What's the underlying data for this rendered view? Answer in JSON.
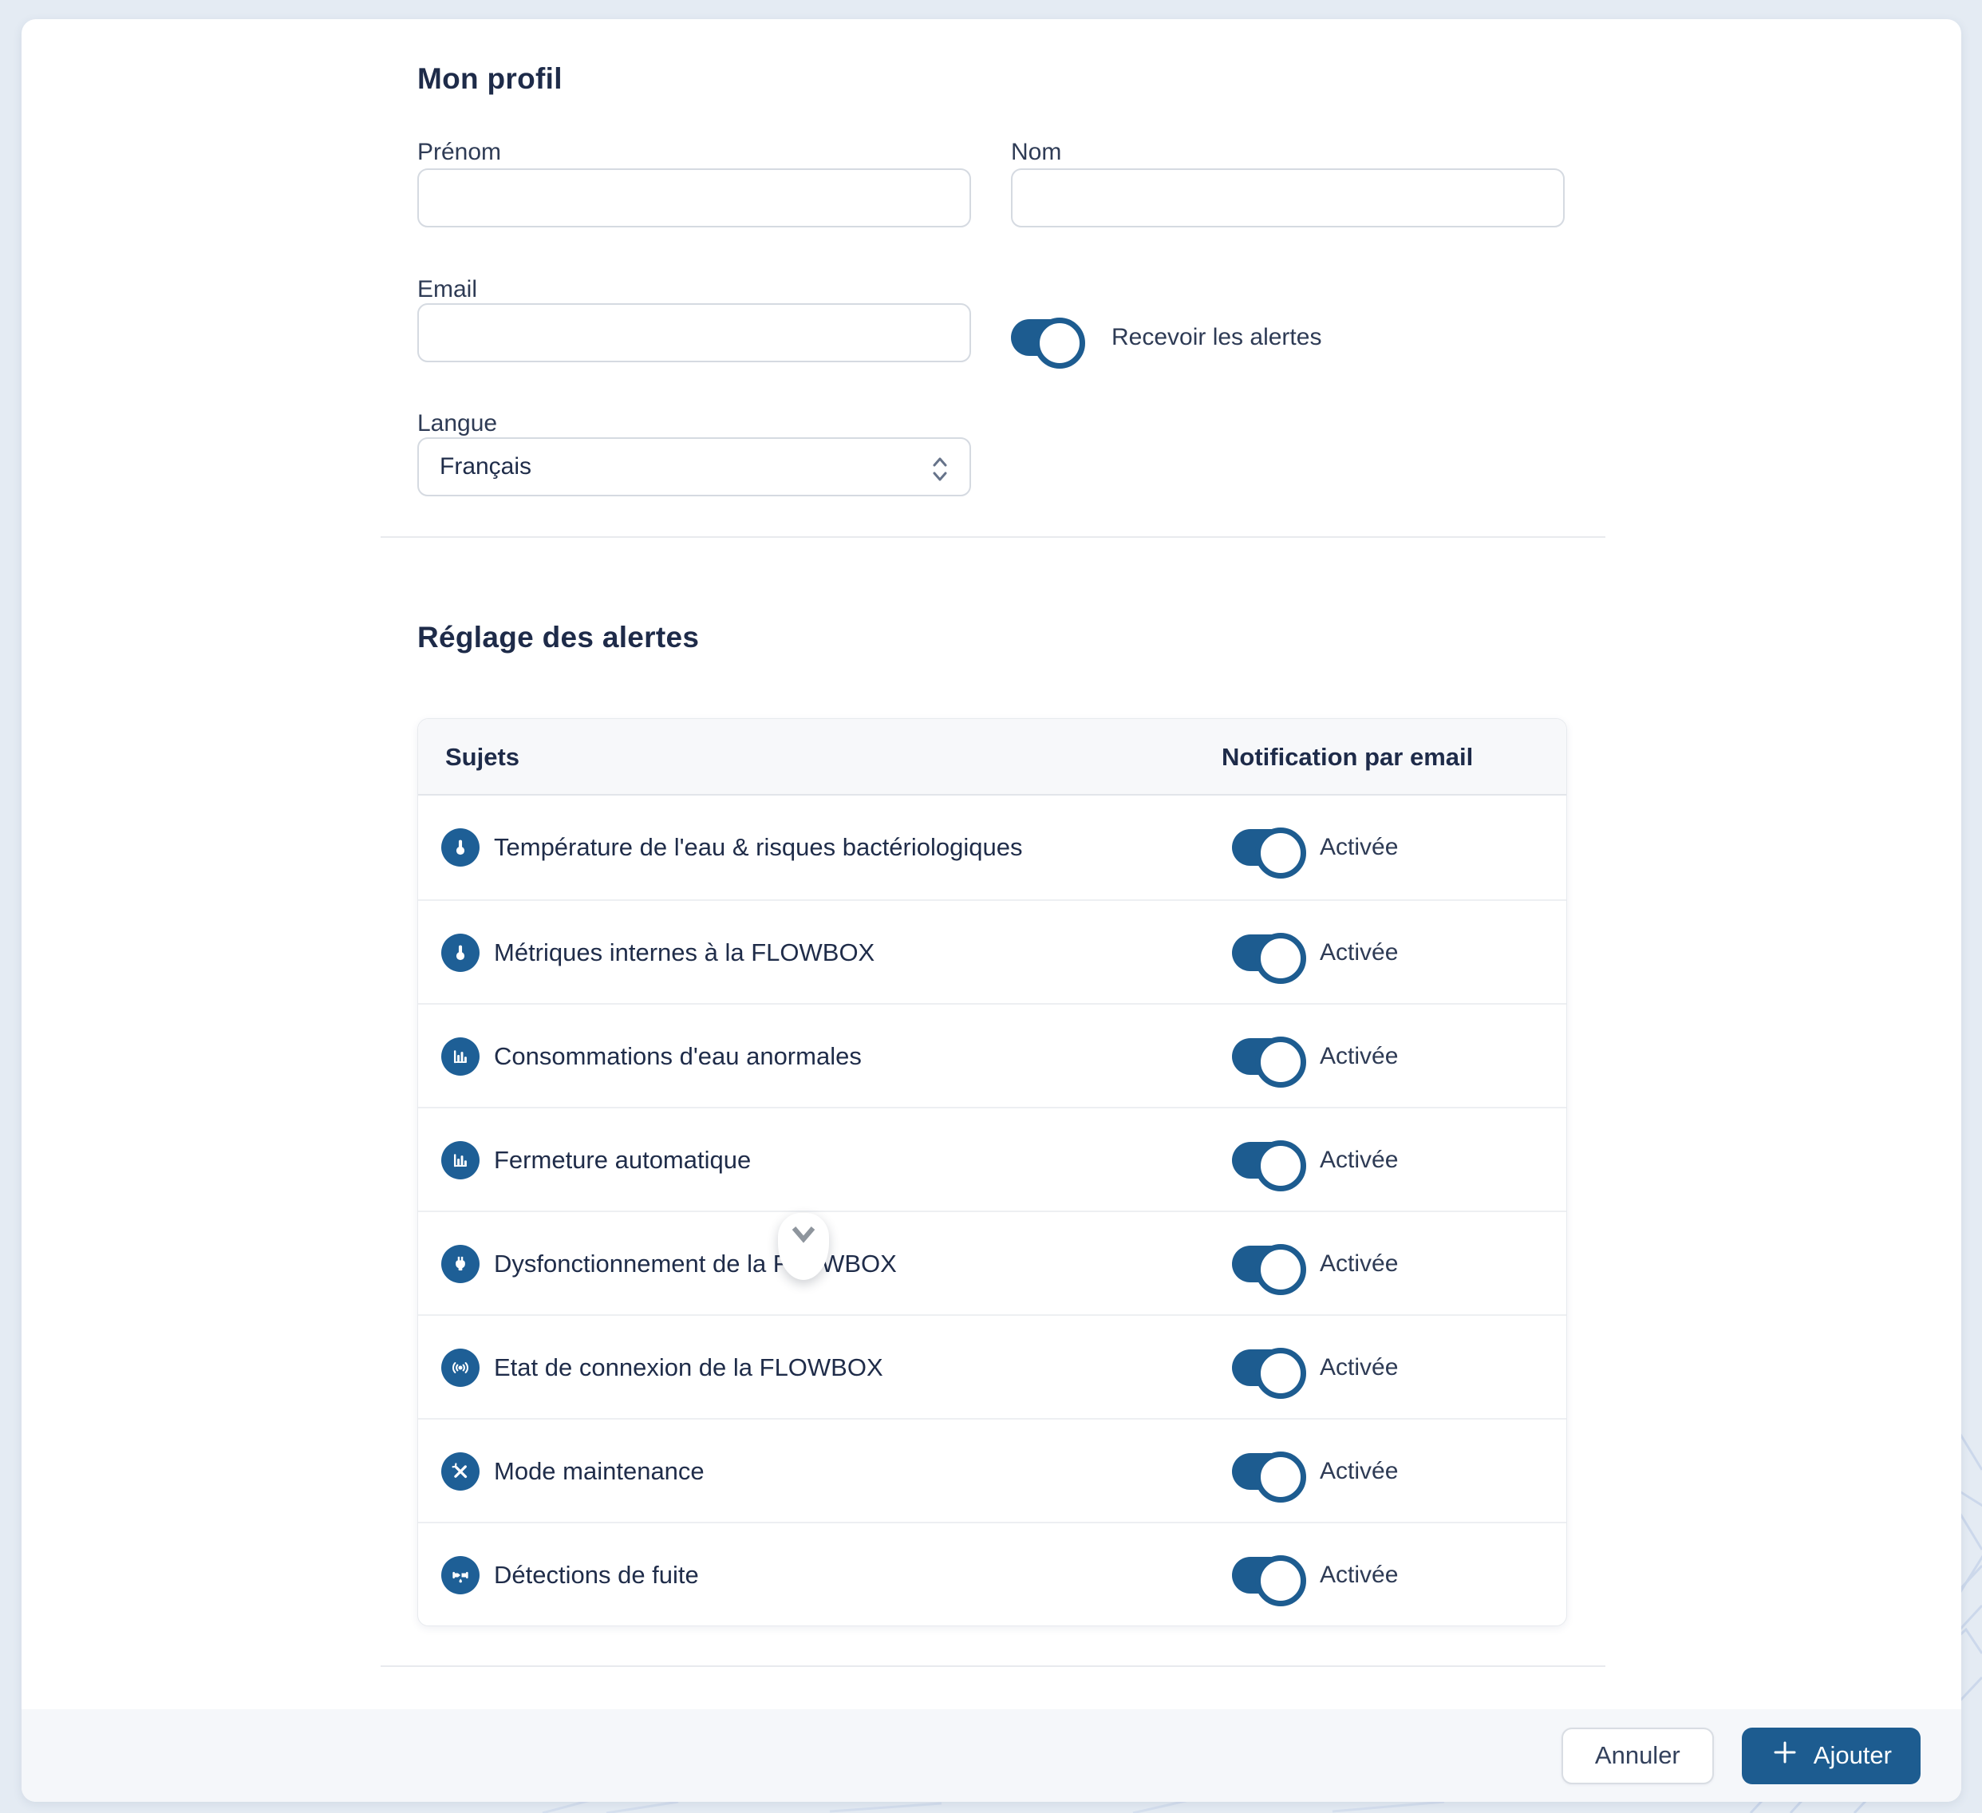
{
  "colors": {
    "primary": "#1d5c90",
    "icon_circle": "#1e5f96",
    "page_background": "#e4ebf3",
    "footer_background": "#f5f7fa",
    "text_navy": "#1f2c49"
  },
  "profile": {
    "title": "Mon profil",
    "fields": {
      "first_name": {
        "label": "Prénom",
        "value": "",
        "placeholder": ""
      },
      "last_name": {
        "label": "Nom",
        "value": "",
        "placeholder": ""
      },
      "email": {
        "label": "Email",
        "value": "",
        "placeholder": ""
      },
      "language": {
        "label": "Langue",
        "value": "Français"
      }
    },
    "receive_alerts": {
      "label": "Recevoir les alertes",
      "enabled": true
    }
  },
  "alerts": {
    "title": "Réglage des alertes",
    "table": {
      "headers": {
        "subject": "Sujets",
        "notification": "Notification par email"
      },
      "rows": [
        {
          "icon": "thermometer-icon",
          "label": "Température de l'eau & risques bactériologiques",
          "status": "Activée",
          "enabled": true
        },
        {
          "icon": "thermometer-icon",
          "label": "Métriques internes à la FLOWBOX",
          "status": "Activée",
          "enabled": true
        },
        {
          "icon": "bar-chart-icon",
          "label": "Consommations d'eau anormales",
          "status": "Activée",
          "enabled": true
        },
        {
          "icon": "bar-chart-icon",
          "label": "Fermeture automatique",
          "status": "Activée",
          "enabled": true
        },
        {
          "icon": "plug-icon",
          "label": "Dysfonctionnement de la FLOWBOX",
          "status": "Activée",
          "enabled": true
        },
        {
          "icon": "signal-icon",
          "label": "Etat de connexion de la FLOWBOX",
          "status": "Activée",
          "enabled": true
        },
        {
          "icon": "tools-icon",
          "label": "Mode maintenance",
          "status": "Activée",
          "enabled": true
        },
        {
          "icon": "leak-icon",
          "label": "Détections de fuite",
          "status": "Activée",
          "enabled": true
        }
      ]
    }
  },
  "overlay": {
    "scroll_indicator_icon": "chevron-down-icon"
  },
  "footer": {
    "cancel_label": "Annuler",
    "add_label": "Ajouter"
  }
}
